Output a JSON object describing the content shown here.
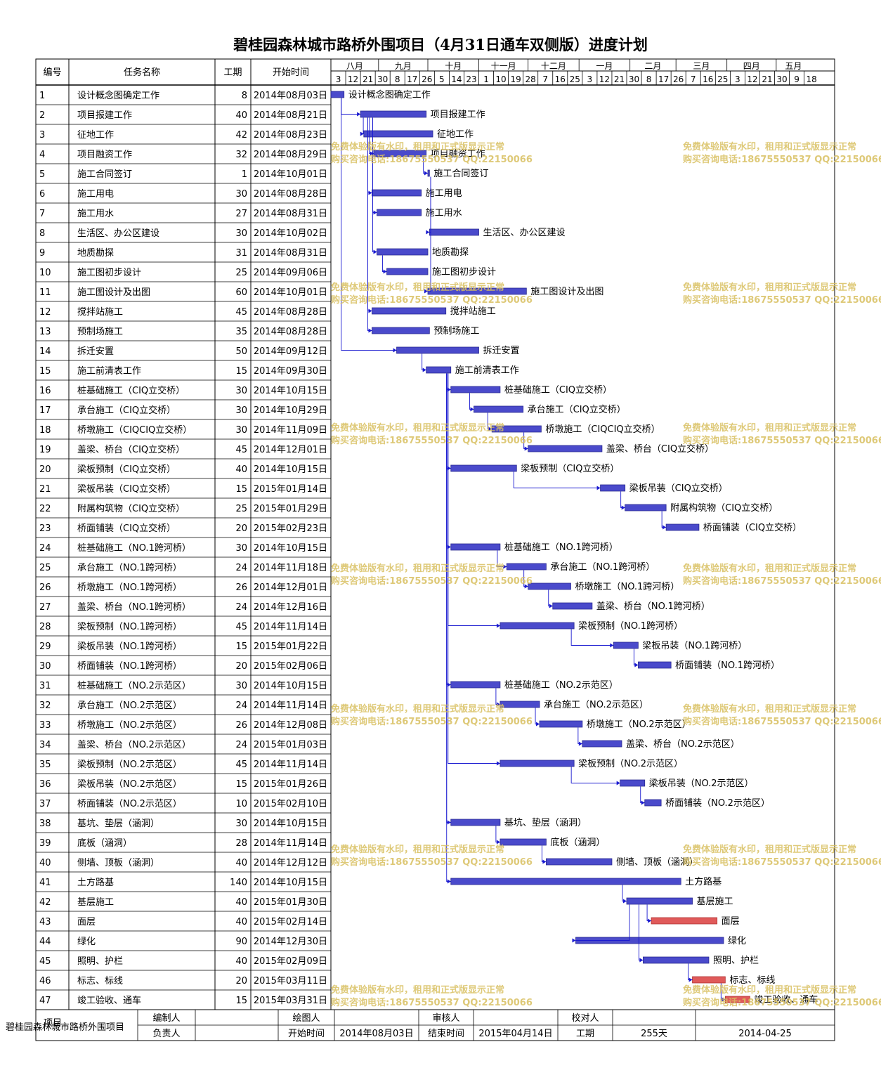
{
  "title": "碧桂园森林城市路桥外围项目（4月31日通车双侧版）进度计划",
  "columns": {
    "id": "编号",
    "name": "任务名称",
    "duration": "工期",
    "start": "开始时间"
  },
  "timeline": {
    "months": [
      "八月",
      "九月",
      "十月",
      "十一月",
      "十二月",
      "一月",
      "二月",
      "三月",
      "四月",
      "五月"
    ],
    "ticks": [
      "3",
      "12",
      "21",
      "30",
      "8",
      "17",
      "26",
      "5",
      "14",
      "23",
      "1",
      "10",
      "19",
      "28",
      "7",
      "16",
      "25",
      "3",
      "12",
      "21",
      "30",
      "8",
      "17",
      "26",
      "7",
      "16",
      "25",
      "3",
      "12",
      "21",
      "30",
      "9",
      "18"
    ]
  },
  "watermark": {
    "line1": "免费体验版有水印，租用和正式版显示正常",
    "line2": "购买咨询电话:18675550537 QQ:22150066"
  },
  "colors": {
    "bar": "#4a4acb",
    "bar_critical": "#e05a5a",
    "link": "#1a1ad0",
    "grid": "#000000",
    "watermark": "#d8c060"
  },
  "chart_data": {
    "type": "gantt",
    "tasks": [
      {
        "id": "1",
        "name": "设计概念图确定工作",
        "duration": 8,
        "start": "2014年08月03日"
      },
      {
        "id": "2",
        "name": "项目报建工作",
        "duration": 40,
        "start": "2014年08月21日"
      },
      {
        "id": "3",
        "name": "征地工作",
        "duration": 42,
        "start": "2014年08月23日"
      },
      {
        "id": "4",
        "name": "项目融资工作",
        "duration": 32,
        "start": "2014年08月29日"
      },
      {
        "id": "5",
        "name": "施工合同签订",
        "duration": 1,
        "start": "2014年10月01日"
      },
      {
        "id": "6",
        "name": "施工用电",
        "duration": 30,
        "start": "2014年08月28日"
      },
      {
        "id": "7",
        "name": "施工用水",
        "duration": 27,
        "start": "2014年08月31日"
      },
      {
        "id": "8",
        "name": "生活区、办公区建设",
        "duration": 30,
        "start": "2014年10月02日"
      },
      {
        "id": "9",
        "name": "地质勘探",
        "duration": 31,
        "start": "2014年08月31日"
      },
      {
        "id": "10",
        "name": "施工图初步设计",
        "duration": 25,
        "start": "2014年09月06日"
      },
      {
        "id": "11",
        "name": "施工图设计及出图",
        "duration": 60,
        "start": "2014年10月01日"
      },
      {
        "id": "12",
        "name": "搅拌站施工",
        "duration": 45,
        "start": "2014年08月28日"
      },
      {
        "id": "13",
        "name": "预制场施工",
        "duration": 35,
        "start": "2014年08月28日"
      },
      {
        "id": "14",
        "name": "拆迁安置",
        "duration": 50,
        "start": "2014年09月12日"
      },
      {
        "id": "15",
        "name": "施工前清表工作",
        "duration": 15,
        "start": "2014年09月30日"
      },
      {
        "id": "16",
        "name": "桩基础施工（CIQ立交桥）",
        "duration": 30,
        "start": "2014年10月15日"
      },
      {
        "id": "17",
        "name": "承台施工（CIQ立交桥）",
        "duration": 30,
        "start": "2014年10月29日"
      },
      {
        "id": "18",
        "name": "桥墩施工（CIQCIQ立交桥）",
        "duration": 30,
        "start": "2014年11月09日"
      },
      {
        "id": "19",
        "name": "盖梁、桥台（CIQ立交桥）",
        "duration": 45,
        "start": "2014年12月01日"
      },
      {
        "id": "20",
        "name": "梁板预制（CIQ立交桥）",
        "duration": 40,
        "start": "2014年10月15日"
      },
      {
        "id": "21",
        "name": "梁板吊装（CIQ立交桥）",
        "duration": 15,
        "start": "2015年01月14日"
      },
      {
        "id": "22",
        "name": "附属构筑物（CIQ立交桥）",
        "duration": 25,
        "start": "2015年01月29日"
      },
      {
        "id": "23",
        "name": "桥面铺装（CIQ立交桥）",
        "duration": 20,
        "start": "2015年02月23日"
      },
      {
        "id": "24",
        "name": "桩基础施工（NO.1跨河桥）",
        "duration": 30,
        "start": "2014年10月15日"
      },
      {
        "id": "25",
        "name": "承台施工（NO.1跨河桥）",
        "duration": 24,
        "start": "2014年11月18日"
      },
      {
        "id": "26",
        "name": "桥墩施工（NO.1跨河桥）",
        "duration": 26,
        "start": "2014年12月01日"
      },
      {
        "id": "27",
        "name": "盖梁、桥台（NO.1跨河桥）",
        "duration": 24,
        "start": "2014年12月16日"
      },
      {
        "id": "28",
        "name": "梁板预制（NO.1跨河桥）",
        "duration": 45,
        "start": "2014年11月14日"
      },
      {
        "id": "29",
        "name": "梁板吊装（NO.1跨河桥）",
        "duration": 15,
        "start": "2015年01月22日"
      },
      {
        "id": "30",
        "name": "桥面铺装（NO.1跨河桥）",
        "duration": 20,
        "start": "2015年02月06日"
      },
      {
        "id": "31",
        "name": "桩基础施工（NO.2示范区）",
        "duration": 30,
        "start": "2014年10月15日"
      },
      {
        "id": "32",
        "name": "承台施工（NO.2示范区）",
        "duration": 24,
        "start": "2014年11月14日"
      },
      {
        "id": "33",
        "name": "桥墩施工（NO.2示范区）",
        "duration": 26,
        "start": "2014年12月08日"
      },
      {
        "id": "34",
        "name": "盖梁、桥台（NO.2示范区）",
        "duration": 24,
        "start": "2015年01月03日"
      },
      {
        "id": "35",
        "name": "梁板预制（NO.2示范区）",
        "duration": 45,
        "start": "2014年11月14日"
      },
      {
        "id": "36",
        "name": "梁板吊装（NO.2示范区）",
        "duration": 15,
        "start": "2015年01月26日"
      },
      {
        "id": "37",
        "name": "桥面铺装（NO.2示范区）",
        "duration": 10,
        "start": "2015年02月10日"
      },
      {
        "id": "38",
        "name": "基坑、垫层（涵洞）",
        "duration": 30,
        "start": "2014年10月15日"
      },
      {
        "id": "39",
        "name": "底板（涵洞）",
        "duration": 28,
        "start": "2014年11月14日"
      },
      {
        "id": "40",
        "name": "侧墙、顶板（涵洞）",
        "duration": 40,
        "start": "2014年12月12日"
      },
      {
        "id": "41",
        "name": "土方路基",
        "duration": 140,
        "start": "2014年10月15日"
      },
      {
        "id": "42",
        "name": "基层施工",
        "duration": 40,
        "start": "2015年01月30日"
      },
      {
        "id": "43",
        "name": "面层",
        "duration": 40,
        "start": "2015年02月14日",
        "critical": true
      },
      {
        "id": "44",
        "name": "绿化",
        "duration": 90,
        "start": "2014年12月30日"
      },
      {
        "id": "45",
        "name": "照明、护栏",
        "duration": 40,
        "start": "2015年02月09日"
      },
      {
        "id": "46",
        "name": "标志、标线",
        "duration": 20,
        "start": "2015年03月11日",
        "critical": true
      },
      {
        "id": "47",
        "name": "竣工验收、通车",
        "duration": 15,
        "start": "2015年03月31日",
        "critical": true
      }
    ]
  },
  "footer": {
    "project_label": "项目",
    "project": "碧桂园森林城市路桥外围项目",
    "editor_label": "编制人",
    "editor": "",
    "drawer_label": "绘图人",
    "drawer": "",
    "reviewer_label": "审核人",
    "reviewer": "",
    "checker_label": "校对人",
    "checker": "",
    "owner_label": "负责人",
    "owner": "",
    "start_label": "开始时间",
    "start": "2014年08月03日",
    "end_label": "结束时间",
    "end": "2015年04月14日",
    "duration_label": "工期",
    "duration": "255天",
    "date": "2014-04-25"
  }
}
